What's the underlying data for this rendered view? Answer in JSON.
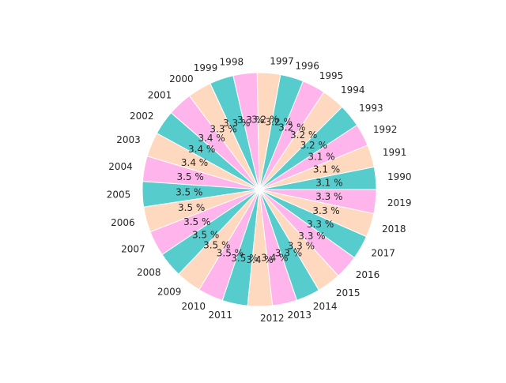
{
  "chart_data": {
    "type": "pie",
    "categories": [
      "1990",
      "1991",
      "1992",
      "1993",
      "1994",
      "1995",
      "1996",
      "1997",
      "1998",
      "1999",
      "2000",
      "2001",
      "2002",
      "2003",
      "2004",
      "2005",
      "2006",
      "2007",
      "2008",
      "2009",
      "2010",
      "2011",
      "2012",
      "2013",
      "2014",
      "2015",
      "2016",
      "2017",
      "2018",
      "2019"
    ],
    "values": [
      3.1,
      3.1,
      3.1,
      3.2,
      3.2,
      3.2,
      3.2,
      3.2,
      3.3,
      3.3,
      3.3,
      3.4,
      3.4,
      3.4,
      3.5,
      3.5,
      3.5,
      3.5,
      3.5,
      3.5,
      3.5,
      3.5,
      3.4,
      3.4,
      3.3,
      3.3,
      3.3,
      3.3,
      3.3,
      3.3
    ],
    "value_labels": [
      "3.1 %",
      "3.1 %",
      "3.1 %",
      "3.2 %",
      "3.2 %",
      "3.2 %",
      "3.2 %",
      "3.2 %",
      "3.3 %",
      "3.3 %",
      "3.3 %",
      "3.4 %",
      "3.4 %",
      "3.4 %",
      "3.5 %",
      "3.5 %",
      "3.5 %",
      "3.5 %",
      "3.5 %",
      "3.5 %",
      "3.5 %",
      "3.5 %",
      "3.4 %",
      "3.4 %",
      "3.3 %",
      "3.3 %",
      "3.3 %",
      "3.3 %",
      "3.3 %",
      "3.3 %"
    ],
    "colors": [
      "#56cccc",
      "#ffd9bf",
      "#ffb5ec"
    ],
    "start_angle_deg": 0,
    "direction": "counterclockwise",
    "edge_color": "#ffffff",
    "title": "",
    "legend": "none"
  }
}
